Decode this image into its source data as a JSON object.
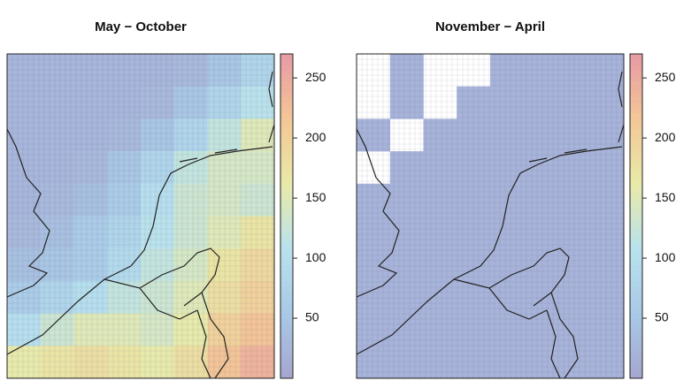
{
  "chart_data": [
    {
      "type": "heatmap",
      "title": "May − October",
      "values": [
        [
          25,
          25,
          25,
          25,
          25,
          30,
          50,
          80
        ],
        [
          25,
          25,
          25,
          25,
          30,
          50,
          80,
          110
        ],
        [
          25,
          25,
          25,
          30,
          50,
          80,
          120,
          150
        ],
        [
          25,
          25,
          30,
          50,
          80,
          120,
          140,
          140
        ],
        [
          25,
          30,
          40,
          60,
          100,
          130,
          140,
          130
        ],
        [
          30,
          40,
          60,
          80,
          110,
          130,
          150,
          170
        ],
        [
          40,
          50,
          60,
          90,
          120,
          140,
          170,
          190
        ],
        [
          60,
          80,
          100,
          120,
          130,
          150,
          180,
          200
        ],
        [
          100,
          130,
          150,
          150,
          140,
          160,
          200,
          220
        ],
        [
          160,
          170,
          180,
          170,
          160,
          180,
          220,
          240
        ]
      ],
      "zlim": [
        0,
        270
      ],
      "zticks": [
        50,
        100,
        150,
        200,
        250
      ],
      "colors": [
        "#a6a6cf",
        "#a9c9e6",
        "#b8e2ee",
        "#e9eaa8",
        "#f3c796",
        "#e89aa4"
      ]
    },
    {
      "type": "heatmap",
      "title": "November − April",
      "values": [
        [
          null,
          20,
          null,
          null,
          20,
          20,
          20,
          20
        ],
        [
          null,
          20,
          null,
          20,
          20,
          20,
          20,
          20
        ],
        [
          20,
          null,
          20,
          20,
          20,
          20,
          20,
          20
        ],
        [
          null,
          20,
          20,
          20,
          20,
          20,
          20,
          20
        ],
        [
          20,
          20,
          20,
          20,
          20,
          20,
          20,
          20
        ],
        [
          20,
          20,
          20,
          20,
          20,
          20,
          20,
          20
        ],
        [
          20,
          20,
          20,
          20,
          20,
          20,
          20,
          20
        ],
        [
          20,
          20,
          20,
          20,
          20,
          20,
          20,
          20
        ],
        [
          20,
          20,
          20,
          20,
          20,
          20,
          20,
          20
        ],
        [
          20,
          20,
          20,
          20,
          20,
          20,
          20,
          20
        ]
      ],
      "zlim": [
        0,
        270
      ],
      "zticks": [
        50,
        100,
        150,
        200,
        250
      ],
      "colors": [
        "#a6a6cf",
        "#a9c9e6",
        "#b8e2ee",
        "#e9eaa8",
        "#f3c796",
        "#e89aa4"
      ]
    }
  ]
}
